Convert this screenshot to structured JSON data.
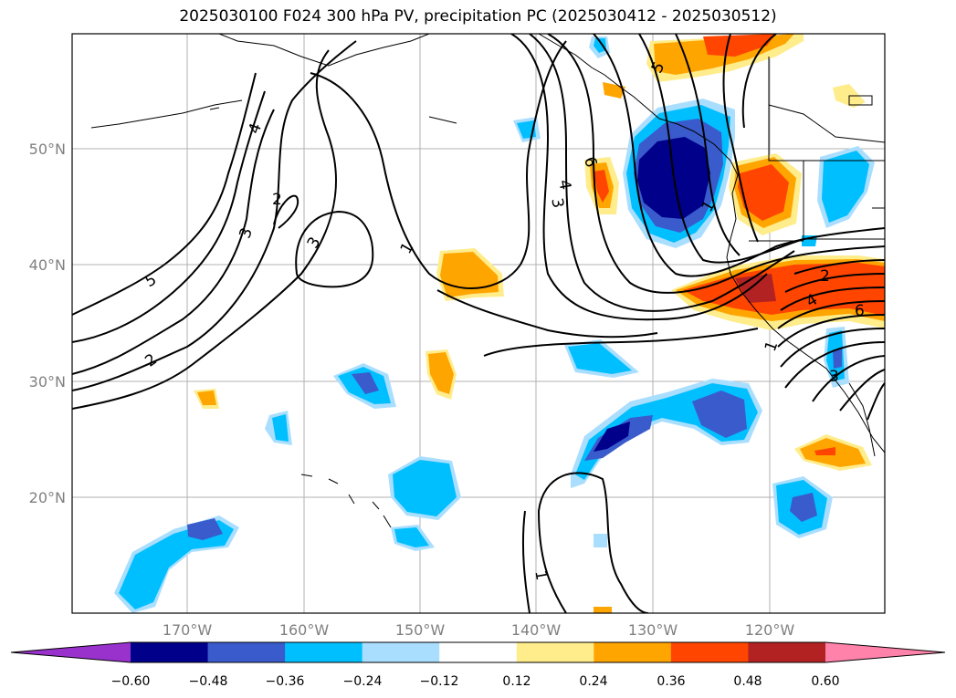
{
  "title": "2025030100 F024 300 hPa PV, precipitation PC (2025030412 - 2025030512)",
  "axes": {
    "lat_labels": [
      "50°N",
      "40°N",
      "30°N",
      "20°N"
    ],
    "lon_labels": [
      "170°W",
      "160°W",
      "150°W",
      "140°W",
      "130°W",
      "120°W"
    ]
  },
  "colorbar": {
    "ticks": [
      "−0.60",
      "−0.48",
      "−0.36",
      "−0.24",
      "−0.12",
      "0.12",
      "0.24",
      "0.36",
      "0.48",
      "0.60"
    ],
    "colors": [
      "#9932cc",
      "#00008b",
      "#3a5bcc",
      "#00bfff",
      "#aadeff",
      "#ffffff",
      "#ffec8b",
      "#ffa500",
      "#ff4500",
      "#b22222",
      "#ff82ab"
    ]
  },
  "contour_labels": {
    "pv_5_west": "5",
    "pv_2_west": "2",
    "pv_4_north": "4",
    "pv_3_west": "3",
    "pv_2_center": "2",
    "pv_3_center": "3",
    "pv_1_center": "1",
    "pv_4_trough": "4",
    "pv_3_trough": "3",
    "pv_6_trough": "6",
    "pv_5_ridge": "5",
    "pv_1_coast": "1",
    "pv_2_cutoff": "2",
    "pv_4_cutoff": "4",
    "pv_6_cutoff": "6",
    "pv_1_south": "1",
    "pv_3_cutoff_s": "3",
    "pv_1_subtrop": "1"
  }
}
